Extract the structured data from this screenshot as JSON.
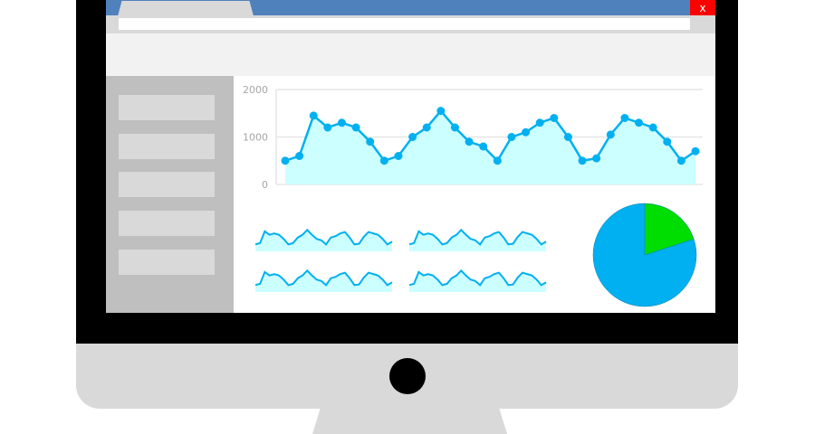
{
  "window": {
    "close_label": "x",
    "address_value": ""
  },
  "sidebar": {
    "items": [
      "",
      "",
      "",
      "",
      ""
    ]
  },
  "colors": {
    "title_bar": "#4f81bd",
    "close": "#ff0000",
    "line": "#00b0f0",
    "fill": "#ccffff",
    "pie_blue": "#00b0f0",
    "pie_green": "#00dd00"
  },
  "chart_data": [
    {
      "type": "area",
      "ylim": [
        0,
        2000
      ],
      "yticks": [
        "0",
        "1000",
        "2000"
      ],
      "grid": true,
      "values": [
        500,
        600,
        1450,
        1200,
        1300,
        1200,
        900,
        500,
        600,
        1000,
        1200,
        1550,
        1200,
        900,
        800,
        500,
        1000,
        1100,
        1300,
        1400,
        1000,
        500,
        550,
        1050,
        1400,
        1300,
        1200,
        900,
        500,
        700
      ]
    },
    {
      "type": "area",
      "sparkline": true,
      "count": 4,
      "values": [
        500,
        600,
        1450,
        1200,
        1300,
        1200,
        900,
        500,
        600,
        1000,
        1200,
        1550,
        1200,
        900,
        800,
        500,
        1000,
        1100,
        1300,
        1400,
        1000,
        500,
        550,
        1050,
        1400,
        1300,
        1200,
        900,
        500,
        700
      ]
    },
    {
      "type": "pie",
      "values": [
        0.8,
        0.2
      ],
      "colors": [
        "#00b0f0",
        "#00dd00"
      ]
    }
  ]
}
